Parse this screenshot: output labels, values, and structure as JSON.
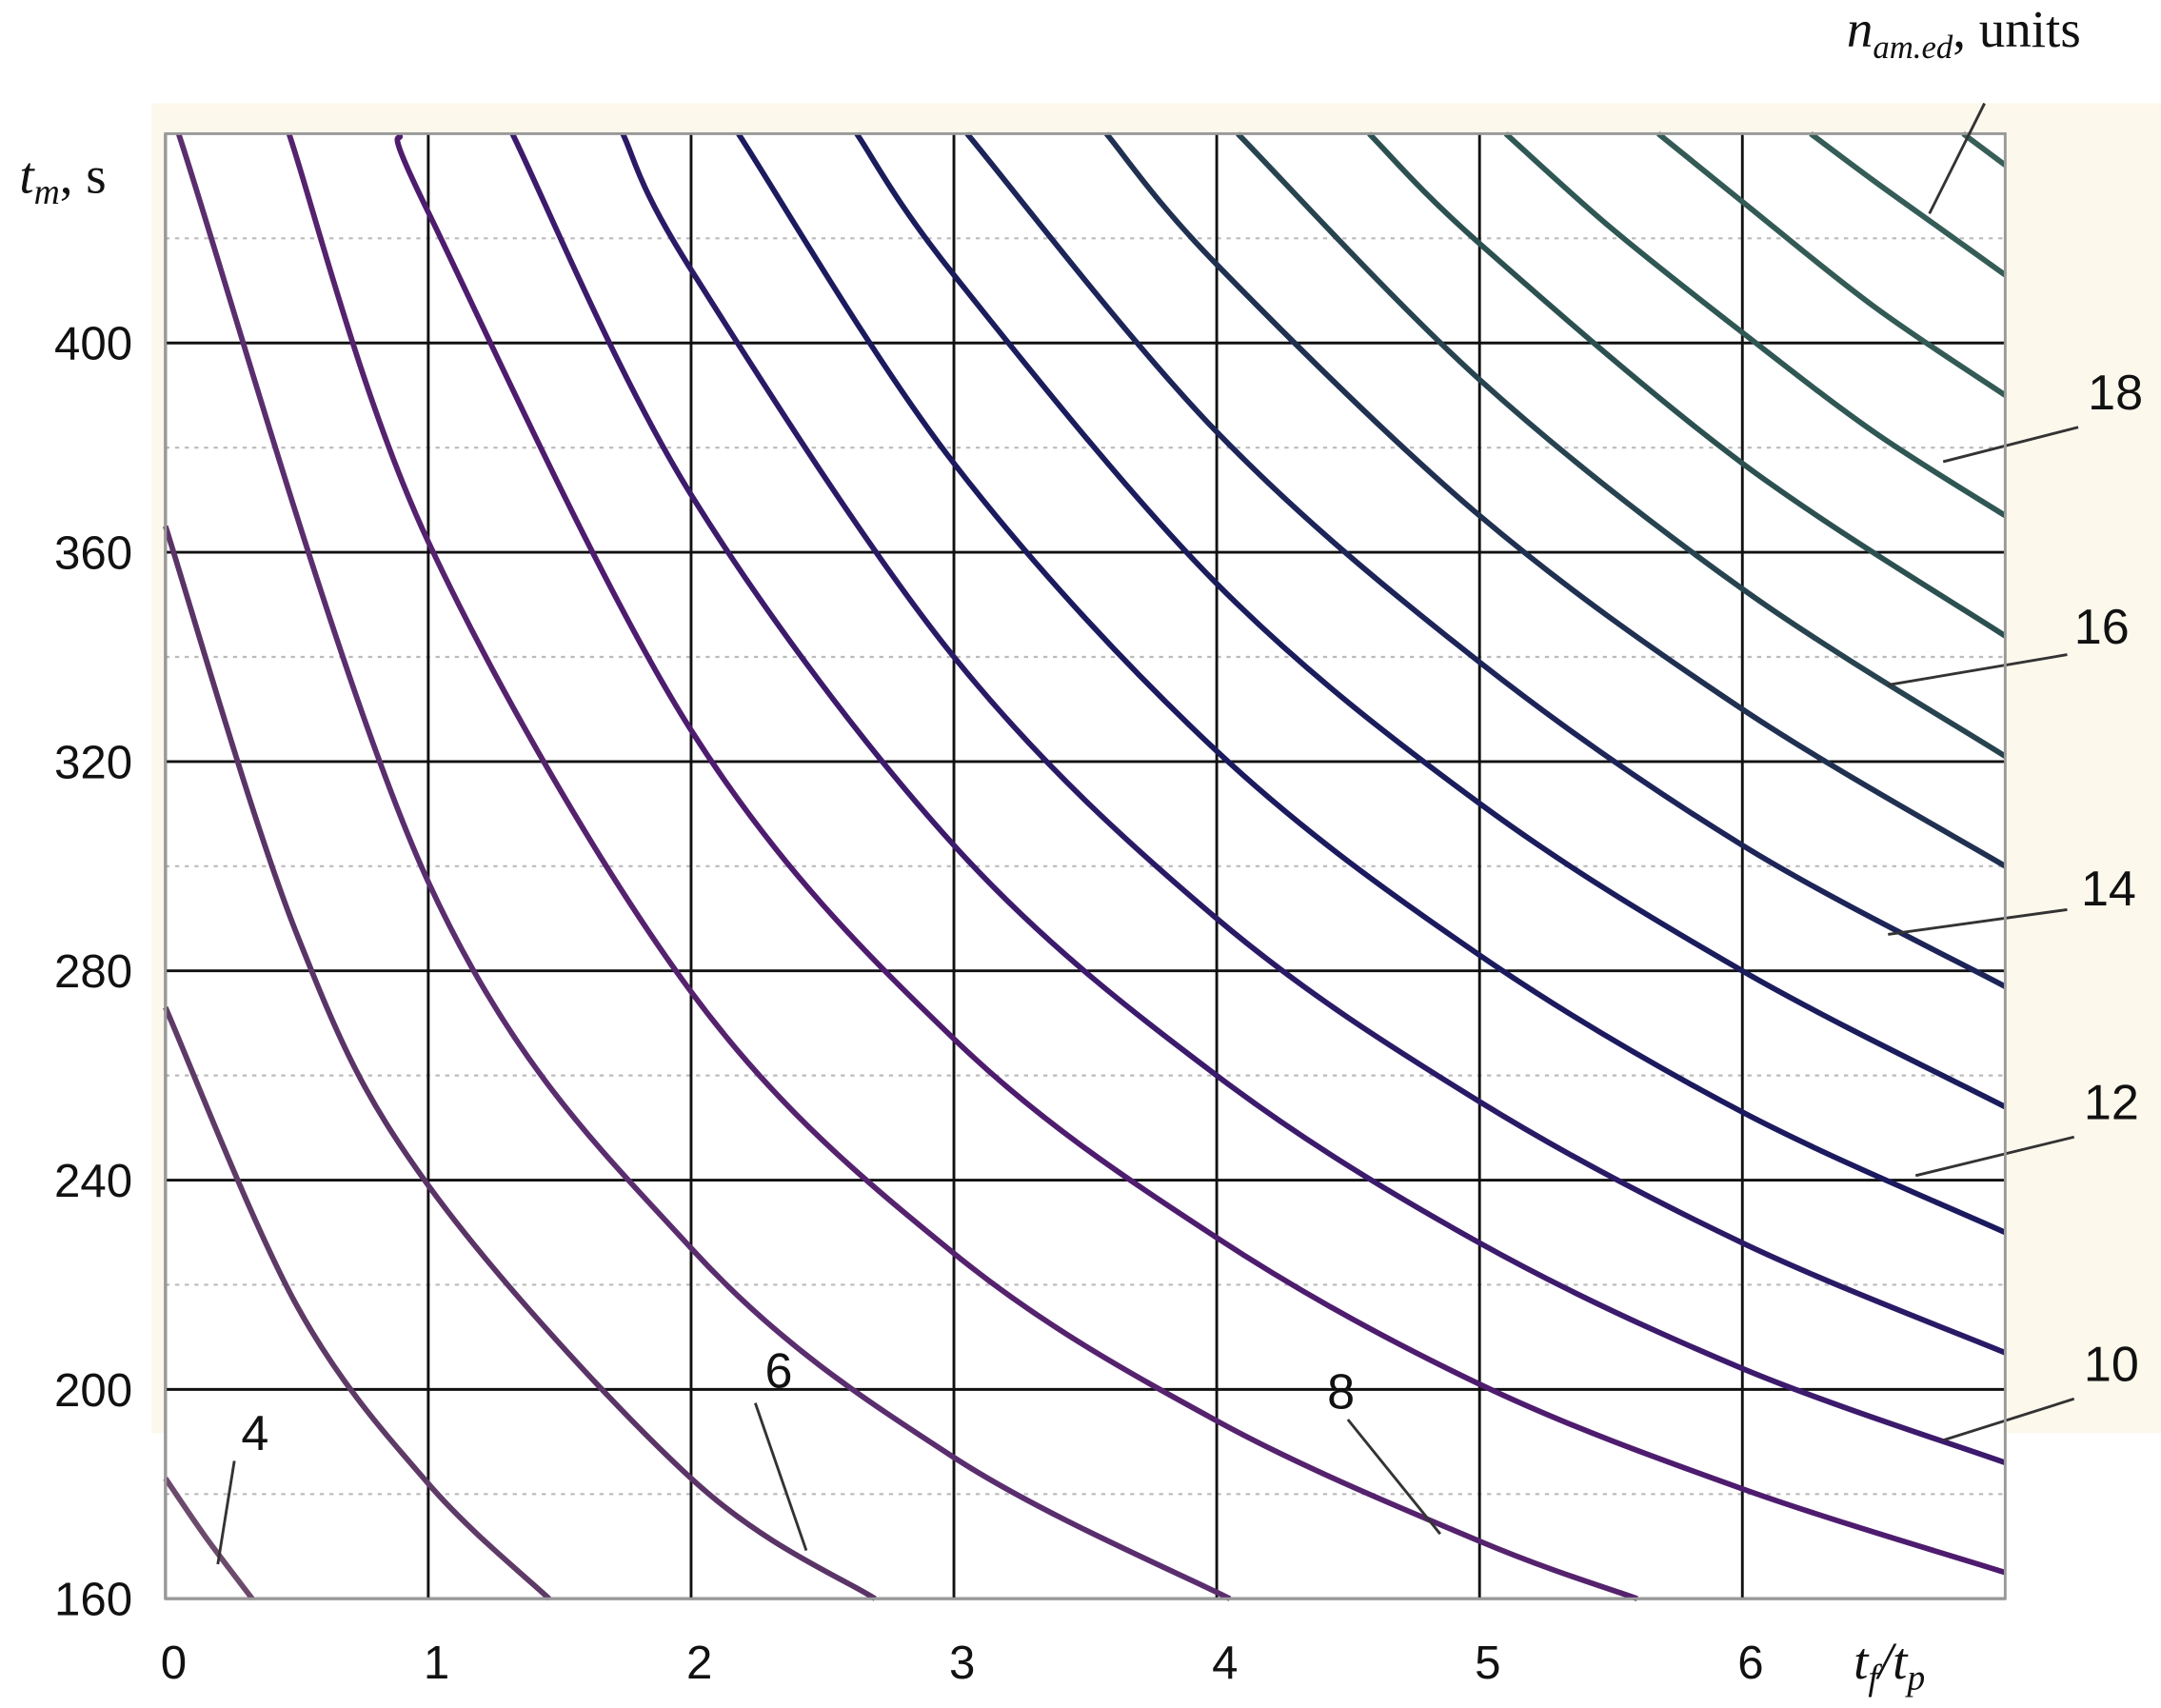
{
  "chart_data": {
    "type": "line",
    "ylabel": [
      "t",
      "m",
      ", s"
    ],
    "xlabel": [
      "t",
      "f",
      "/t",
      "p"
    ],
    "series_label": [
      "n",
      "am.ed",
      ", units"
    ],
    "xlim": [
      0,
      7
    ],
    "xticks": [
      0,
      1,
      2,
      3,
      4,
      5,
      6
    ],
    "ylim": [
      160,
      440
    ],
    "yticks": [
      160,
      200,
      240,
      280,
      320,
      360,
      400
    ],
    "minor_yticks": [
      180,
      220,
      260,
      300,
      340,
      380,
      420
    ],
    "grid": true,
    "series": [
      {
        "label": "4",
        "color": "#6b4a6b",
        "x": [
          0,
          0.15,
          0.33
        ],
        "values": [
          183,
          172,
          160
        ]
      },
      {
        "color": "#5e3a66",
        "x": [
          0,
          0.5,
          1,
          1.46
        ],
        "values": [
          273,
          216,
          182,
          160
        ]
      },
      {
        "label": "6",
        "color": "#5a3466",
        "x": [
          0,
          0.5,
          1,
          2,
          2.7
        ],
        "values": [
          365,
          287,
          239,
          183,
          160
        ]
      },
      {
        "color": "#5a2e6e",
        "x": [
          0.05,
          1,
          2,
          3,
          4.05
        ],
        "values": [
          440,
          297,
          227,
          187,
          160
        ]
      },
      {
        "label": "8",
        "color": "#55226e",
        "x": [
          0.47,
          1,
          2,
          3,
          4,
          5,
          5.6
        ],
        "values": [
          440,
          362,
          276,
          226,
          194,
          171,
          160
        ]
      },
      {
        "color": "#4e1c6e",
        "x": [
          0.89,
          1,
          2,
          3,
          4,
          5,
          6,
          7
        ],
        "values": [
          440,
          425,
          326,
          267,
          229,
          201,
          181,
          165
        ]
      },
      {
        "label": "10",
        "color": "#3c1a6c",
        "x": [
          1.32,
          2,
          3,
          4,
          5,
          6,
          7
        ],
        "values": [
          440,
          371,
          304,
          260,
          228,
          204,
          186
        ]
      },
      {
        "color": "#2a1a66",
        "x": [
          1.74,
          2,
          3,
          4,
          5,
          6,
          7
        ],
        "values": [
          440,
          414,
          340,
          290,
          255,
          228,
          207
        ]
      },
      {
        "label": "12",
        "color": "#1c1a5e",
        "x": [
          2.18,
          3,
          4,
          5,
          6,
          7
        ],
        "values": [
          440,
          377,
          322,
          283,
          253,
          230
        ]
      },
      {
        "color": "#1a1c5c",
        "x": [
          2.63,
          3,
          4,
          5,
          6,
          7
        ],
        "values": [
          440,
          413,
          354,
          312,
          280,
          254
        ]
      },
      {
        "label": "14",
        "color": "#1c2458",
        "x": [
          3.05,
          4,
          5,
          6,
          7
        ],
        "values": [
          440,
          383,
          339,
          304,
          277
        ]
      },
      {
        "color": "#203050",
        "x": [
          3.58,
          4,
          5,
          6,
          7
        ],
        "values": [
          440,
          415,
          367,
          330,
          300
        ]
      },
      {
        "label": "16",
        "color": "#27434f",
        "x": [
          4.08,
          5,
          6,
          7
        ],
        "values": [
          440,
          393,
          353,
          321
        ]
      },
      {
        "color": "#2c5050",
        "x": [
          4.58,
          5,
          6,
          7
        ],
        "values": [
          440,
          419,
          377,
          344
        ]
      },
      {
        "label": "18",
        "color": "#2f5753",
        "x": [
          5.1,
          5.5,
          6,
          6.5,
          7
        ],
        "values": [
          440,
          422,
          402,
          383,
          367
        ]
      },
      {
        "color": "#335a55",
        "x": [
          5.68,
          6,
          6.5,
          7
        ],
        "values": [
          440,
          427,
          407,
          390
        ]
      },
      {
        "color": "#355c57",
        "x": [
          6.26,
          6.5,
          6.75,
          7
        ],
        "values": [
          440,
          431,
          422,
          413
        ]
      },
      {
        "color": "#385e58",
        "x": [
          6.84,
          7
        ],
        "values": [
          440,
          434
        ]
      }
    ]
  }
}
